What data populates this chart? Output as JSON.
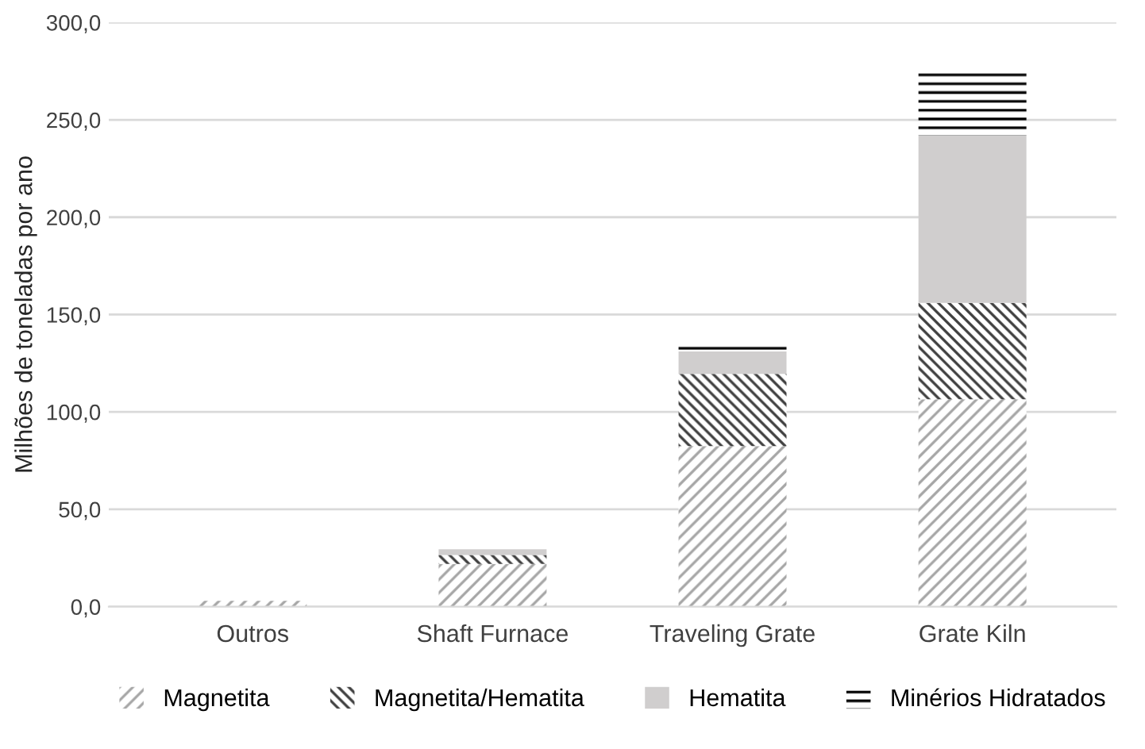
{
  "chart_data": {
    "type": "bar",
    "stacked": true,
    "ylabel": "Milhões de toneladas por ano",
    "categories": [
      "Outros",
      "Shaft Furnace",
      "Traveling Grate",
      "Grate Kiln"
    ],
    "series": [
      {
        "name": "Magnetita",
        "color": "#a6a6a6",
        "values": [
          3,
          22,
          82.5,
          106.5
        ]
      },
      {
        "name": "Magnetita/Hematita",
        "color": "#404040",
        "values": [
          0,
          4.5,
          37,
          49.5
        ]
      },
      {
        "name": "Hematita",
        "color": "#d0cece",
        "values": [
          0,
          3,
          11.5,
          86
        ]
      },
      {
        "name": "Minérios Hidratados",
        "color": "#000000",
        "values": [
          0,
          0,
          5,
          34
        ]
      }
    ],
    "ylim": [
      0,
      300
    ],
    "yticks": [
      {
        "value": 0,
        "label": "0,0"
      },
      {
        "value": 50,
        "label": "50,0"
      },
      {
        "value": 100,
        "label": "100,0"
      },
      {
        "value": 150,
        "label": "150,0"
      },
      {
        "value": 200,
        "label": "200,0"
      },
      {
        "value": 250,
        "label": "250,0"
      },
      {
        "value": 300,
        "label": "300,0"
      }
    ],
    "grid": "y",
    "legend": "bottom"
  }
}
